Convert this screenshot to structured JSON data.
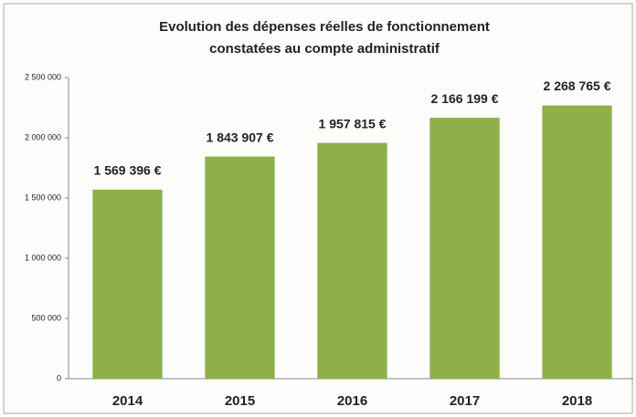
{
  "chart_data": {
    "type": "bar",
    "title": [
      "Evolution des dépenses réelles de fonctionnement",
      "constatées au compte administratif"
    ],
    "categories": [
      "2014",
      "2015",
      "2016",
      "2017",
      "2018"
    ],
    "values": [
      1569396,
      1843907,
      1957815,
      2166199,
      2268765
    ],
    "value_labels": [
      "1 569 396 €",
      "1 843 907 €",
      "1 957 815 €",
      "2 166 199 €",
      "2 268 765 €"
    ],
    "color": "#8db04a",
    "ylim": [
      0,
      2500000
    ],
    "yticks": [
      0,
      {
        "value": 500000,
        "label": "500 000"
      },
      {
        "value": 1000000,
        "label": "1 000 000"
      },
      {
        "value": 1500000,
        "label": "1 500 000"
      },
      {
        "value": 2000000,
        "label": "2 000 000"
      },
      {
        "value": 2500000,
        "label": "2 500 000"
      }
    ],
    "grid": false
  }
}
